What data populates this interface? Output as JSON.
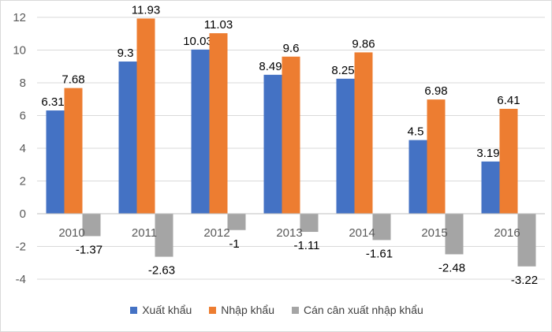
{
  "colors": {
    "xuat_khau": "#4472C4",
    "nhap_khau": "#ED7D31",
    "can_can": "#A5A5A5",
    "grid": "#D9D9D9",
    "axis_text": "#595959",
    "label_text": "#000000"
  },
  "chart_data": {
    "type": "bar",
    "title": "",
    "xlabel": "",
    "ylabel": "",
    "categories": [
      "2010",
      "2011",
      "2012",
      "2013",
      "2014",
      "2015",
      "2016"
    ],
    "ylim": [
      -4,
      12
    ],
    "yticks": [
      "-4",
      "-2",
      "0",
      "2",
      "4",
      "6",
      "8",
      "10",
      "12"
    ],
    "ytick_values": [
      -4,
      -2,
      0,
      2,
      4,
      6,
      8,
      10,
      12
    ],
    "grid": true,
    "legend_position": "bottom",
    "series": [
      {
        "name": "Xuất khẩu",
        "color_key": "xuat_khau",
        "values": [
          6.31,
          9.3,
          10.03,
          8.49,
          8.25,
          4.5,
          3.19
        ],
        "labels": [
          "6.31",
          "9.3",
          "10.03",
          "8.49",
          "8.25",
          "4.5",
          "3.19"
        ]
      },
      {
        "name": "Nhập khẩu",
        "color_key": "nhap_khau",
        "values": [
          7.68,
          11.93,
          11.03,
          9.6,
          9.86,
          6.98,
          6.41
        ],
        "labels": [
          "7.68",
          "11.93",
          "11.03",
          "9.6",
          "9.86",
          "6.98",
          "6.41"
        ]
      },
      {
        "name": "Cán cân xuất nhập khẩu",
        "color_key": "can_can",
        "values": [
          -1.37,
          -2.63,
          -1,
          -1.11,
          -1.61,
          -2.48,
          -3.22
        ],
        "labels": [
          "-1.37",
          "-2.63",
          "-1",
          "-1.11",
          "-1.61",
          "-2.48",
          "-3.22"
        ]
      }
    ]
  }
}
